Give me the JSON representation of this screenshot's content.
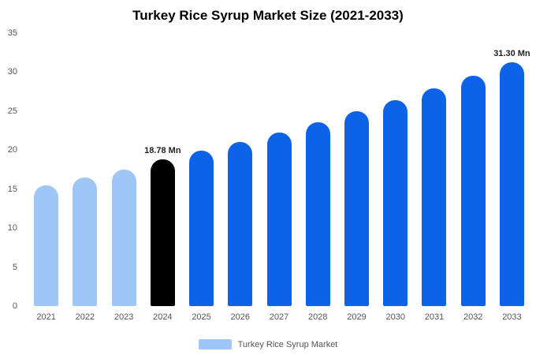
{
  "chart": {
    "title": "Turkey Rice Syrup Market Size (2021-2033)",
    "legend_label": "Turkey Rice Syrup Market"
  },
  "chart_data": {
    "type": "bar",
    "title": "Turkey Rice Syrup Market Size (2021-2033)",
    "xlabel": "",
    "ylabel": "",
    "unit": "Mn",
    "ylim": [
      0,
      35
    ],
    "yticks": [
      0,
      5,
      10,
      15,
      20,
      25,
      30,
      35
    ],
    "grid": false,
    "categories": [
      "2021",
      "2022",
      "2023",
      "2024",
      "2025",
      "2026",
      "2027",
      "2028",
      "2029",
      "2030",
      "2031",
      "2032",
      "2033"
    ],
    "values": [
      15.5,
      16.5,
      17.5,
      18.78,
      19.88,
      21.04,
      22.27,
      23.57,
      24.95,
      26.41,
      27.95,
      29.58,
      31.3
    ],
    "colors": [
      "#9ec7f7",
      "#9ec7f7",
      "#9ec7f7",
      "#000000",
      "#0d63e8",
      "#0d63e8",
      "#0d63e8",
      "#0d63e8",
      "#0d63e8",
      "#0d63e8",
      "#0d63e8",
      "#0d63e8",
      "#0d63e8"
    ],
    "annotations": [
      null,
      null,
      null,
      "18.78 Mn",
      null,
      null,
      null,
      null,
      null,
      null,
      null,
      null,
      "31.30 Mn"
    ],
    "legend": {
      "position": "bottom",
      "label": "Turkey Rice Syrup Market",
      "swatch_color": "#9ec7f7"
    }
  }
}
